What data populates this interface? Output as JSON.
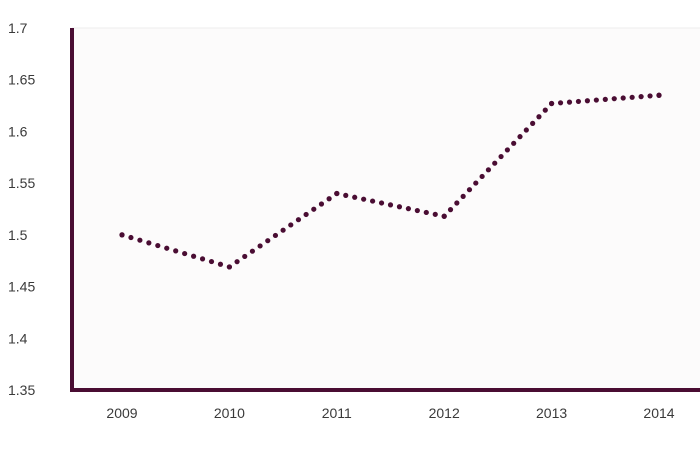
{
  "chart_data": {
    "type": "line",
    "title": "",
    "xlabel": "",
    "ylabel": "",
    "categories": [
      "2009",
      "2010",
      "2011",
      "2012",
      "2013",
      "2014"
    ],
    "series": [
      {
        "name": "",
        "values": [
          1.5,
          1.469,
          1.54,
          1.518,
          1.627,
          1.635
        ]
      }
    ],
    "ylim": [
      1.35,
      1.7
    ],
    "yticks": [
      "1.35",
      "1.4",
      "1.45",
      "1.5",
      "1.55",
      "1.6",
      "1.65",
      "1.7"
    ],
    "ytick_values": [
      1.35,
      1.4,
      1.45,
      1.5,
      1.55,
      1.6,
      1.65,
      1.7
    ],
    "grid": false,
    "legend": "none",
    "line_style": "dotted",
    "colors": {
      "series": "#4a0d33",
      "axes": "#4a0d33",
      "plot_background": "#fcfbfb",
      "page_background": "#ffffff",
      "gridline": "#eeeeee",
      "tick_text": "#3a3a3a"
    }
  }
}
